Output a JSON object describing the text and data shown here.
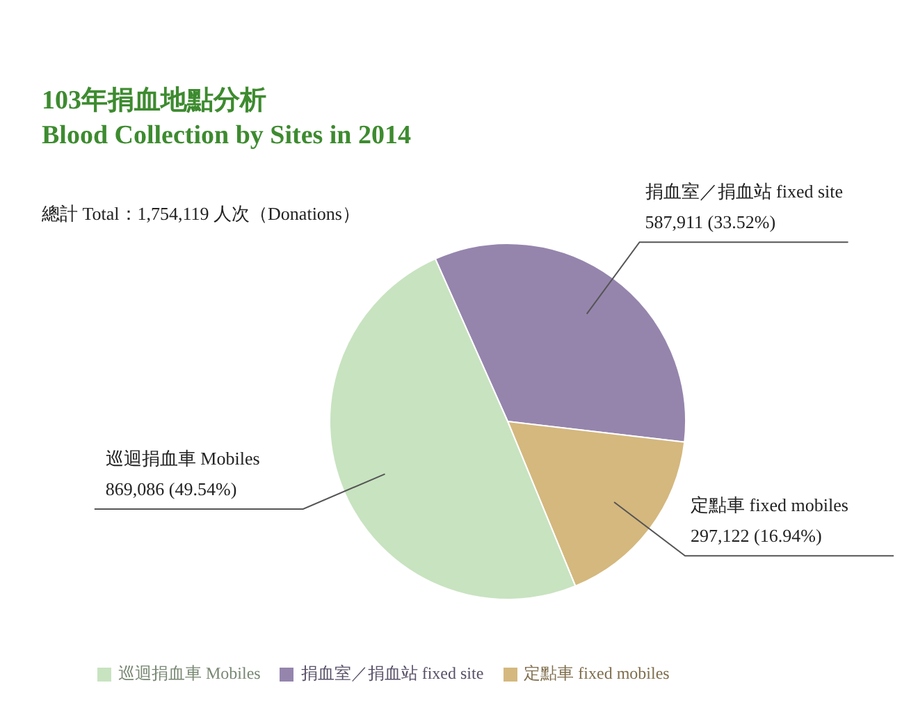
{
  "chart_data": {
    "type": "pie",
    "title": "103年捐血地點分析",
    "subtitle": "Blood Collection by Sites in 2014",
    "annotations": [
      "總計 Total：1,754,119 人次（Donations）"
    ],
    "categories": [
      "捐血室／捐血站  fixed site",
      "定點車  fixed mobiles",
      "巡迴捐血車  Mobiles"
    ],
    "values": [
      587911,
      297122,
      869086
    ],
    "value_labels": [
      "587,911 (33.52%)",
      "297,122 (16.94%)",
      "869,086 (49.54%)"
    ],
    "colors": [
      "#9585ad",
      "#d4b87e",
      "#c8e3c0"
    ],
    "legend": "bottom"
  }
}
